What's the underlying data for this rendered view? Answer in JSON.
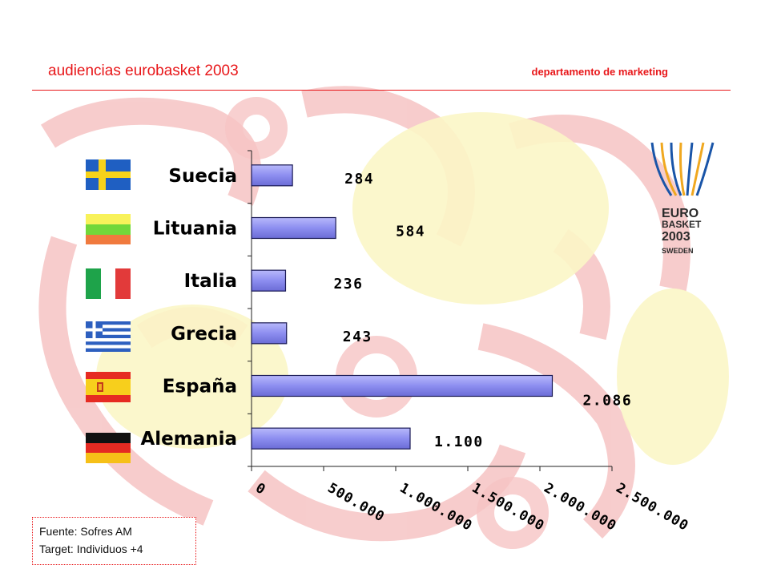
{
  "header": {
    "title": "audiencias eurobasket 2003",
    "department": "departamento de marketing"
  },
  "colors": {
    "accent": "#e8171a",
    "bar_fill": "#8d8ef0",
    "watermark_red": "#f6c4c4",
    "watermark_yellow": "#fbf6c6"
  },
  "chart_data": {
    "type": "bar",
    "orientation": "horizontal",
    "categories": [
      "Suecia",
      "Lituania",
      "Italia",
      "Grecia",
      "España",
      "Alemania"
    ],
    "values": [
      284000,
      584000,
      236000,
      243000,
      2086000,
      1100000
    ],
    "data_labels": [
      "284",
      "584",
      "236",
      "243",
      "2.086",
      "1.100"
    ],
    "x_ticks": [
      0,
      500000,
      1000000,
      1500000,
      2000000,
      2500000
    ],
    "x_tick_labels": [
      "0",
      "500.000",
      "1.000.000",
      "1.500.000",
      "2.000.000",
      "2.500.000"
    ],
    "xlim": [
      0,
      2500000
    ],
    "grid": false,
    "legend": "none"
  },
  "flags": [
    "sweden-flag",
    "lithuania-flag",
    "italy-flag",
    "greece-flag",
    "spain-flag",
    "germany-flag"
  ],
  "logo": {
    "line1": "EURO",
    "line2": "BASKET",
    "line3": "2003",
    "line4": "SWEDEN"
  },
  "source": {
    "line1": "Fuente:  Sofres AM",
    "line2": "Target:  Individuos +4"
  }
}
